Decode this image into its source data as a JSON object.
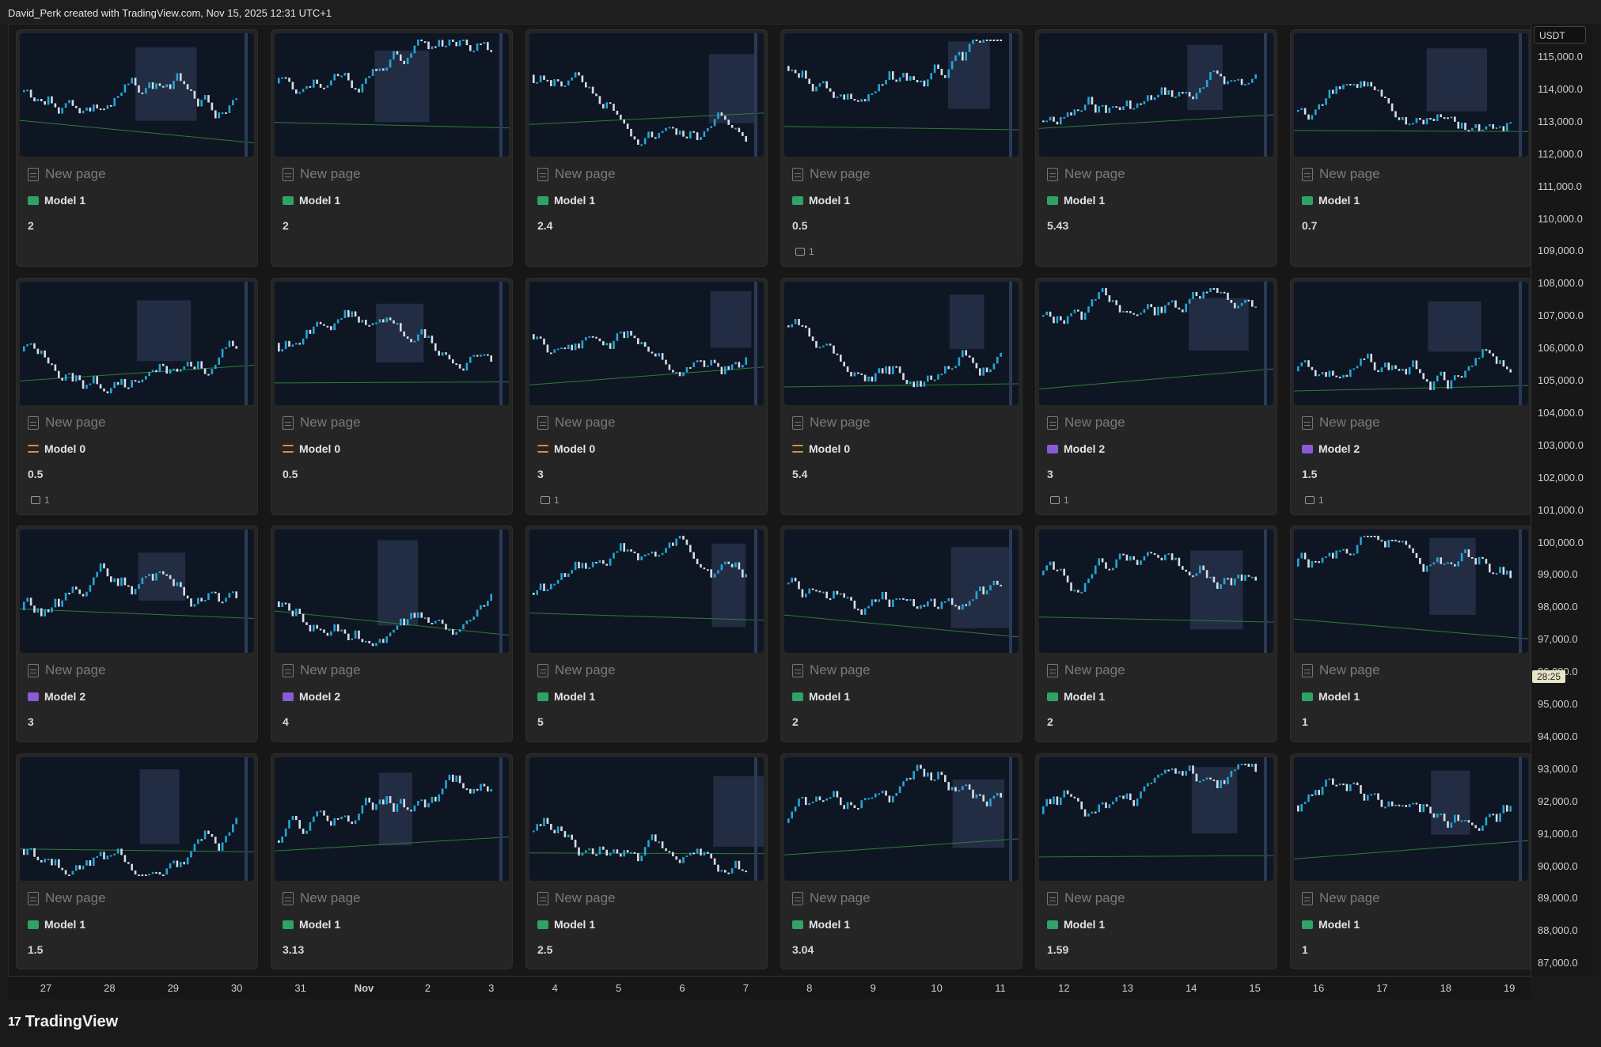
{
  "header": {
    "credit": "David_Perk created with TradingView.com, Nov 15, 2025 12:31 UTC+1"
  },
  "currency": "USDT",
  "timer": "28:25",
  "brand": {
    "logo": "17",
    "name": "TradingView"
  },
  "price_axis": [
    "115,000.0",
    "114,000.0",
    "113,000.0",
    "112,000.0",
    "111,000.0",
    "110,000.0",
    "109,000.0",
    "108,000.0",
    "107,000.0",
    "106,000.0",
    "105,000.0",
    "104,000.0",
    "103,000.0",
    "102,000.0",
    "101,000.0",
    "100,000.0",
    "99,000.0",
    "98,000.0",
    "97,000.0",
    "96,000.0",
    "95,000.0",
    "94,000.0",
    "93,000.0",
    "92,000.0",
    "91,000.0",
    "90,000.0",
    "89,000.0",
    "88,000.0",
    "87,000.0"
  ],
  "date_axis": [
    "27",
    "28",
    "29",
    "30",
    "31",
    "Nov",
    "2",
    "3",
    "4",
    "5",
    "6",
    "7",
    "8",
    "9",
    "10",
    "11",
    "12",
    "13",
    "14",
    "15",
    "16",
    "17",
    "18",
    "19"
  ],
  "cards": [
    {
      "title": "New page",
      "tag": "Model 1",
      "tag_color": "green",
      "value": "2",
      "comments": ""
    },
    {
      "title": "New page",
      "tag": "Model 1",
      "tag_color": "green",
      "value": "2",
      "comments": ""
    },
    {
      "title": "New page",
      "tag": "Model 1",
      "tag_color": "green",
      "value": "2.4",
      "comments": ""
    },
    {
      "title": "New page",
      "tag": "Model 1",
      "tag_color": "green",
      "value": "0.5",
      "comments": "1"
    },
    {
      "title": "New page",
      "tag": "Model 1",
      "tag_color": "green",
      "value": "5.43",
      "comments": ""
    },
    {
      "title": "New page",
      "tag": "Model 1",
      "tag_color": "green",
      "value": "0.7",
      "comments": ""
    },
    {
      "title": "New page",
      "tag": "Model 0",
      "tag_color": "orange",
      "value": "0.5",
      "comments": "1"
    },
    {
      "title": "New page",
      "tag": "Model 0",
      "tag_color": "orange",
      "value": "0.5",
      "comments": ""
    },
    {
      "title": "New page",
      "tag": "Model 0",
      "tag_color": "orange",
      "value": "3",
      "comments": "1"
    },
    {
      "title": "New page",
      "tag": "Model 0",
      "tag_color": "orange",
      "value": "5.4",
      "comments": ""
    },
    {
      "title": "New page",
      "tag": "Model 2",
      "tag_color": "purple",
      "value": "3",
      "comments": "1"
    },
    {
      "title": "New page",
      "tag": "Model 2",
      "tag_color": "purple",
      "value": "1.5",
      "comments": "1"
    },
    {
      "title": "New page",
      "tag": "Model 2",
      "tag_color": "purple",
      "value": "3",
      "comments": ""
    },
    {
      "title": "New page",
      "tag": "Model 2",
      "tag_color": "purple",
      "value": "4",
      "comments": ""
    },
    {
      "title": "New page",
      "tag": "Model 1",
      "tag_color": "green",
      "value": "5",
      "comments": ""
    },
    {
      "title": "New page",
      "tag": "Model 1",
      "tag_color": "green",
      "value": "2",
      "comments": ""
    },
    {
      "title": "New page",
      "tag": "Model 1",
      "tag_color": "green",
      "value": "2",
      "comments": ""
    },
    {
      "title": "New page",
      "tag": "Model 1",
      "tag_color": "green",
      "value": "1",
      "comments": ""
    },
    {
      "title": "New page",
      "tag": "Model 1",
      "tag_color": "green",
      "value": "1.5",
      "comments": ""
    },
    {
      "title": "New page",
      "tag": "Model 1",
      "tag_color": "green",
      "value": "3.13",
      "comments": ""
    },
    {
      "title": "New page",
      "tag": "Model 1",
      "tag_color": "green",
      "value": "2.5",
      "comments": ""
    },
    {
      "title": "New page",
      "tag": "Model 1",
      "tag_color": "green",
      "value": "3.04",
      "comments": ""
    },
    {
      "title": "New page",
      "tag": "Model 1",
      "tag_color": "green",
      "value": "1.59",
      "comments": ""
    },
    {
      "title": "New page",
      "tag": "Model 1",
      "tag_color": "green",
      "value": "1",
      "comments": ""
    }
  ]
}
